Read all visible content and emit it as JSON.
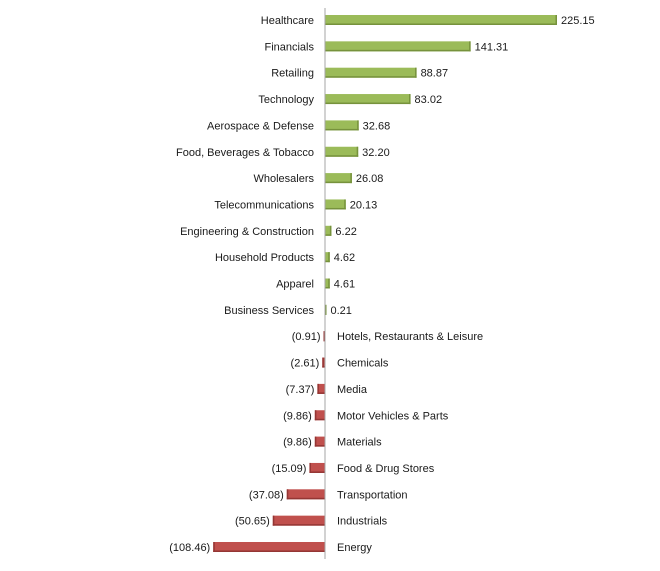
{
  "chart_data": {
    "type": "bar",
    "orientation": "horizontal",
    "title": "",
    "xlabel": "",
    "ylabel": "",
    "categories": [
      "Healthcare",
      "Financials",
      "Retailing",
      "Technology",
      "Aerospace & Defense",
      "Food, Beverages & Tobacco",
      "Wholesalers",
      "Telecommunications",
      "Engineering & Construction",
      "Household Products",
      "Apparel",
      "Business Services",
      "Hotels, Restaurants & Leisure",
      "Chemicals",
      "Media",
      "Motor Vehicles & Parts",
      "Materials",
      "Food & Drug Stores",
      "Transportation",
      "Industrials",
      "Energy"
    ],
    "values": [
      225.15,
      141.31,
      88.87,
      83.02,
      32.68,
      32.2,
      26.08,
      20.13,
      6.22,
      4.62,
      4.61,
      0.21,
      -0.91,
      -2.61,
      -7.37,
      -9.86,
      -9.86,
      -15.09,
      -37.08,
      -50.65,
      -108.46
    ],
    "value_labels": [
      "225.15",
      "141.31",
      "88.87",
      "83.02",
      "32.68",
      "32.20",
      "26.08",
      "20.13",
      "6.22",
      "4.62",
      "4.61",
      "0.21",
      "(0.91)",
      "(2.61)",
      "(7.37)",
      "(9.86)",
      "(9.86)",
      "(15.09)",
      "(37.08)",
      "(50.65)",
      "(108.46)"
    ],
    "xlim": [
      -108.46,
      225.15
    ],
    "grid": false,
    "legend": "none",
    "colors": {
      "positive": "#9BBB59",
      "positive_shadow": "#76923C",
      "negative": "#C0504D",
      "negative_shadow": "#943634",
      "axis": "#A6A6A6"
    }
  }
}
